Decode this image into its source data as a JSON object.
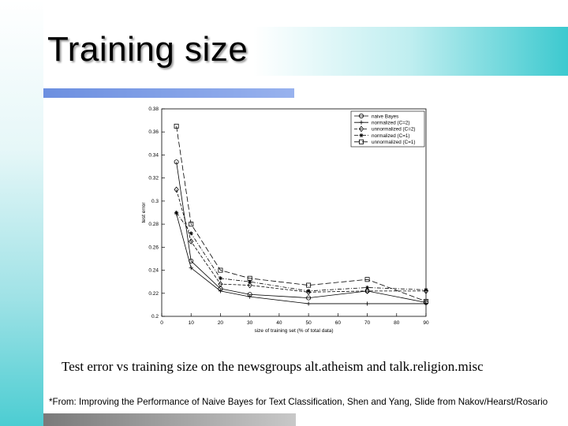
{
  "slide": {
    "title": "Training size",
    "caption": "Test error vs training size on the newsgroups alt.atheism and talk.religion.misc",
    "footnote": "*From: Improving the Performance of Naive Bayes for Text Classification, Shen and Yang, Slide from Nakov/Hearst/Rosario"
  },
  "chart_data": {
    "type": "line",
    "xlabel": "size of training set (% of total data)",
    "ylabel": "test error",
    "xlim": [
      0,
      90
    ],
    "ylim": [
      0.2,
      0.38
    ],
    "xticks": [
      0,
      10,
      20,
      30,
      40,
      50,
      60,
      70,
      80,
      90
    ],
    "yticks": [
      0.2,
      0.22,
      0.24,
      0.26,
      0.28,
      0.3,
      0.32,
      0.34,
      0.36,
      0.38
    ],
    "legend_position": "top-right",
    "x": [
      5,
      10,
      20,
      30,
      50,
      70,
      90
    ],
    "series": [
      {
        "name": "naive Bayes",
        "marker": "circle",
        "dash": "none",
        "values": [
          0.334,
          0.248,
          0.224,
          0.219,
          0.216,
          0.222,
          0.212
        ]
      },
      {
        "name": "normalized (C=2)",
        "marker": "plus",
        "dash": "none",
        "values": [
          0.289,
          0.242,
          0.222,
          0.217,
          0.211,
          0.211,
          0.211
        ]
      },
      {
        "name": "unnormalized (C=2)",
        "marker": "diamond",
        "dash": "dash",
        "values": [
          0.31,
          0.265,
          0.228,
          0.227,
          0.221,
          0.222,
          0.222
        ]
      },
      {
        "name": "normalized (C=1)",
        "marker": "star",
        "dash": "dashdot",
        "values": [
          0.29,
          0.272,
          0.233,
          0.23,
          0.222,
          0.225,
          0.223
        ]
      },
      {
        "name": "unnormalized (C=1)",
        "marker": "square",
        "dash": "longdash",
        "values": [
          0.365,
          0.28,
          0.24,
          0.233,
          0.227,
          0.232,
          0.213
        ]
      }
    ]
  }
}
